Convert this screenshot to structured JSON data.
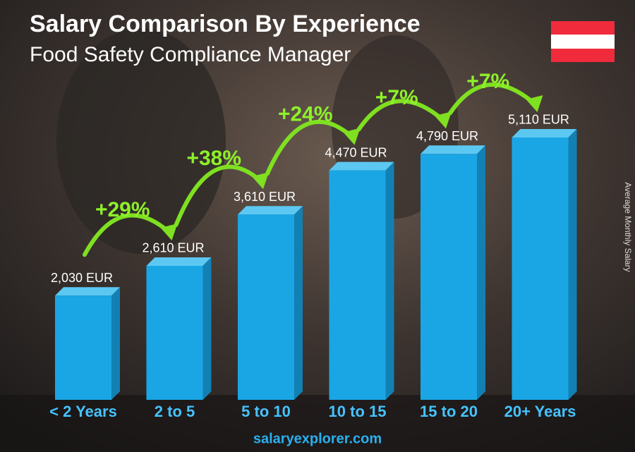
{
  "chart_data": {
    "type": "bar",
    "title": "Salary Comparison By Experience",
    "subtitle": "Food Safety Compliance Manager",
    "y_axis_label": "Average Monthly Salary",
    "categories": [
      "< 2 Years",
      "2 to 5",
      "5 to 10",
      "10 to 15",
      "15 to 20",
      "20+ Years"
    ],
    "values": [
      2030,
      2610,
      3610,
      4470,
      4790,
      5110
    ],
    "value_labels": [
      "2,030 EUR",
      "2,610 EUR",
      "3,610 EUR",
      "4,470 EUR",
      "4,790 EUR",
      "5,110 EUR"
    ],
    "changes": [
      "+29%",
      "+38%",
      "+24%",
      "+7%",
      "+7%"
    ],
    "color": "#1aa6e4",
    "footer": "salaryexplorer.com"
  }
}
